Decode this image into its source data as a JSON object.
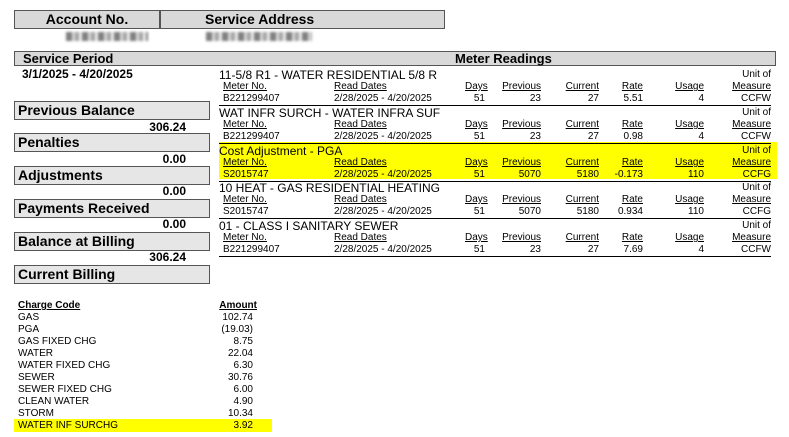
{
  "account": {
    "account_no_label": "Account No.",
    "service_address_label": "Service Address"
  },
  "header": {
    "service_period_label": "Service Period",
    "service_period": "3/1/2025 - 4/20/2025",
    "meter_readings_label": "Meter Readings"
  },
  "summary": [
    {
      "label": "Previous Balance",
      "value": "306.24"
    },
    {
      "label": "Penalties",
      "value": "0.00"
    },
    {
      "label": "Adjustments",
      "value": "0.00"
    },
    {
      "label": "Payments Received",
      "value": "0.00"
    },
    {
      "label": "Balance at Billing",
      "value": "306.24"
    },
    {
      "label": "Current Billing",
      "value": ""
    }
  ],
  "col_headers": {
    "meter": "Meter No.",
    "dates": "Read Dates",
    "days": "Days",
    "previous": "Previous",
    "current": "Current",
    "rate": "Rate",
    "usage": "Usage",
    "unit1": "Unit of",
    "unit2": "Measure"
  },
  "meters": [
    {
      "title": "11-5/8 R1 - WATER RESIDENTIAL 5/8 R",
      "meter": "B221299407",
      "dates": "2/28/2025 - 4/20/2025",
      "days": "51",
      "previous": "23",
      "current": "27",
      "rate": "5.51",
      "usage": "4",
      "unit": "CCFW",
      "highlight": false
    },
    {
      "title": "WAT INFR SURCH - WATER INFRA SUF",
      "meter": "B221299407",
      "dates": "2/28/2025 - 4/20/2025",
      "days": "51",
      "previous": "23",
      "current": "27",
      "rate": "0.98",
      "usage": "4",
      "unit": "CCFW",
      "highlight": true
    },
    {
      "title": "Cost Adjustment - PGA",
      "meter": "S2015747",
      "dates": "2/28/2025 - 4/20/2025",
      "days": "51",
      "previous": "5070",
      "current": "5180",
      "rate": "-0.173",
      "usage": "110",
      "unit": "CCFG",
      "highlight": false
    },
    {
      "title": "10 HEAT  - GAS RESIDENTIAL HEATING",
      "meter": "S2015747",
      "dates": "2/28/2025 - 4/20/2025",
      "days": "51",
      "previous": "5070",
      "current": "5180",
      "rate": "0.934",
      "usage": "110",
      "unit": "CCFG",
      "highlight": false
    },
    {
      "title": "01 - CLASS I SANITARY SEWER",
      "meter": "B221299407",
      "dates": "2/28/2025 - 4/20/2025",
      "days": "51",
      "previous": "23",
      "current": "27",
      "rate": "7.69",
      "usage": "4",
      "unit": "CCFW",
      "highlight": false
    }
  ],
  "charges": {
    "code_header": "Charge Code",
    "amount_header": "Amount",
    "rows": [
      {
        "code": "GAS",
        "amount": "102.74"
      },
      {
        "code": "PGA",
        "amount": "(19.03)"
      },
      {
        "code": "GAS FIXED CHG",
        "amount": "8.75"
      },
      {
        "code": "WATER",
        "amount": "22.04"
      },
      {
        "code": "WATER FIXED CHG",
        "amount": "6.30"
      },
      {
        "code": "SEWER",
        "amount": "30.76"
      },
      {
        "code": "SEWER FIXED CHG",
        "amount": "6.00"
      },
      {
        "code": "CLEAN WATER",
        "amount": "4.90"
      },
      {
        "code": "STORM",
        "amount": "10.34"
      },
      {
        "code": "WATER INF SURCHG",
        "amount": "3.92",
        "highlight": true
      }
    ]
  },
  "colors": {
    "highlight": "#ffff00",
    "header_bg": "#d9d9d9",
    "box_bg": "#e6e6e6"
  }
}
